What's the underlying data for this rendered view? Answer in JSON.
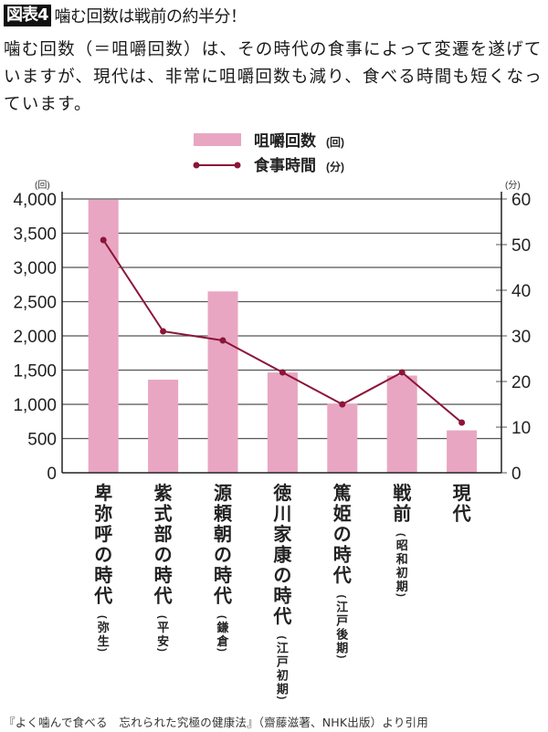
{
  "header": {
    "badge": "図表4",
    "title": "噛む回数は戦前の約半分！",
    "description": "噛む回数（＝咀嚼回数）は、その時代の食事によって変遷を遂げていますが、現代は、非常に咀嚼回数も減り、食べる時間も短くなっています。"
  },
  "legend": {
    "bar_label": "咀嚼回数",
    "bar_unit": "(回)",
    "line_label": "食事時間",
    "line_unit": "(分)"
  },
  "colors": {
    "bar": "#e8a6c2",
    "line": "#8b1538",
    "grid": "#555555",
    "axis": "#222222",
    "badge_bg": "#111111"
  },
  "chart_data": {
    "type": "bar+line",
    "title": "噛む回数は戦前の約半分！",
    "categories": [
      {
        "main": "卑弥呼の時代",
        "sub": "(弥生)"
      },
      {
        "main": "紫式部の時代",
        "sub": "(平安)"
      },
      {
        "main": "源頼朝の時代",
        "sub": "(鎌倉)"
      },
      {
        "main": "徳川家康の時代",
        "sub": "(江戸初期)"
      },
      {
        "main": "篤姫の時代",
        "sub": "(江戸後期)"
      },
      {
        "main": "戦前",
        "sub": "(昭和初期)"
      },
      {
        "main": "現代",
        "sub": ""
      }
    ],
    "series": [
      {
        "name": "咀嚼回数",
        "unit": "回",
        "type": "bar",
        "axis": "left",
        "values": [
          3990,
          1360,
          2650,
          1465,
          1010,
          1420,
          620
        ]
      },
      {
        "name": "食事時間",
        "unit": "分",
        "type": "line",
        "axis": "right",
        "values": [
          51,
          31,
          29,
          22,
          15,
          22,
          11
        ]
      }
    ],
    "left_axis": {
      "unit_label": "(回)",
      "ylim": [
        0,
        4000
      ],
      "ticks": [
        "0",
        "500",
        "1,000",
        "1,500",
        "2,000",
        "2,500",
        "3,000",
        "3,500",
        "4,000"
      ]
    },
    "right_axis": {
      "unit_label": "(分)",
      "ylim": [
        0,
        60
      ],
      "ticks": [
        "0",
        "10",
        "20",
        "30",
        "40",
        "50",
        "60"
      ]
    },
    "grid": true,
    "legend_position": "top-center"
  },
  "source": "『よく噛んで食べる　忘れられた究極の健康法』（齋藤滋著、NHK出版）より引用"
}
